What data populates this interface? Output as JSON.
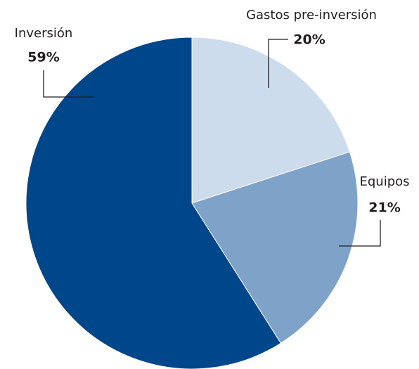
{
  "chart_data": {
    "type": "pie",
    "categories": [
      "Gastos pre-inversión",
      "Equipos",
      "Inversión"
    ],
    "values": [
      20,
      21,
      59
    ],
    "value_labels": [
      "20%",
      "21%",
      "59%"
    ],
    "colors": [
      "#cddcec",
      "#7fa3c8",
      "#00468b"
    ]
  }
}
